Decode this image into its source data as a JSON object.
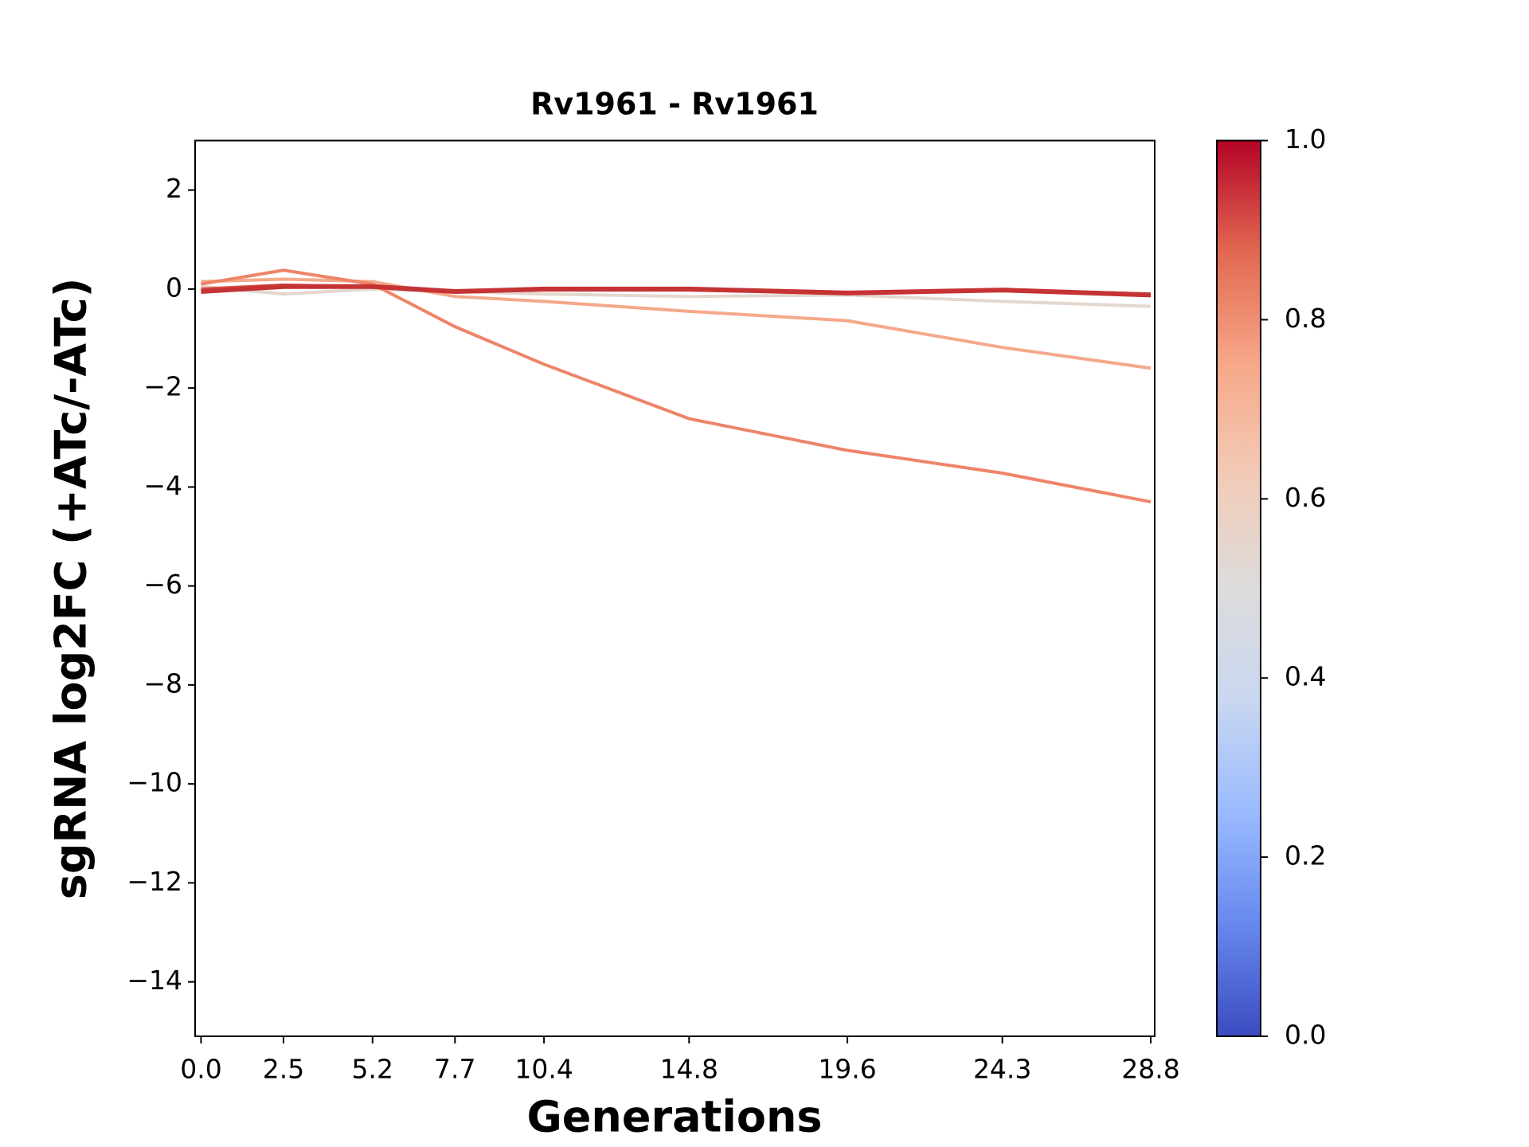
{
  "chart_data": {
    "type": "line",
    "title": "Rv1961 - Rv1961",
    "x_label": "Generations",
    "y_label": "sgRNA log2FC (+ATc/-ATc)",
    "x": [
      0.0,
      2.5,
      5.2,
      7.7,
      10.4,
      14.8,
      19.6,
      24.3,
      28.8
    ],
    "xlim": [
      -0.18,
      28.92
    ],
    "xticks": [
      {
        "value": 0,
        "label": "0.0"
      },
      2.5,
      5.2,
      7.7,
      10.4,
      14.8,
      19.6,
      24.3,
      28.8
    ],
    "ylim": [
      -15.1,
      3
    ],
    "yticks": [
      {
        "value": -14,
        "label": "−14"
      },
      {
        "value": -12,
        "label": "−12"
      },
      {
        "value": -10,
        "label": "−10"
      },
      {
        "value": -8,
        "label": "−8"
      },
      {
        "value": -6,
        "label": "−6"
      },
      {
        "value": -4,
        "label": "−4"
      },
      {
        "value": -2,
        "label": "−2"
      },
      0,
      2
    ],
    "grid": false,
    "series": [
      {
        "color": "#e4d7cf",
        "values": [
          0.05,
          -0.1,
          0.0,
          -0.05,
          -0.1,
          -0.15,
          -0.12,
          -0.25,
          -0.35
        ]
      },
      {
        "color": "#f4a98a",
        "values": [
          0.15,
          0.2,
          0.15,
          -0.15,
          -0.25,
          -0.45,
          -0.64,
          -1.18,
          -1.6
        ]
      },
      {
        "color": "#ee8468",
        "values": [
          0.1,
          0.38,
          0.1,
          -0.76,
          -1.52,
          -2.62,
          -3.26,
          -3.72,
          -4.3
        ]
      },
      {
        "color": "#d65244",
        "values": [
          0.0,
          0.08,
          0.05,
          -0.05,
          -0.02,
          -0.02,
          -0.08,
          -0.02,
          -0.1
        ]
      },
      {
        "color": "#c53334",
        "values": [
          -0.05,
          0.05,
          0.05,
          -0.05,
          0.0,
          0.0,
          -0.08,
          -0.02,
          -0.12
        ]
      }
    ],
    "colorbar": {
      "clim": [
        0,
        1
      ],
      "ticks": [
        {
          "value": 0,
          "label": "0.0"
        },
        0.2,
        0.4,
        0.6,
        0.8,
        {
          "value": 1,
          "label": "1.0"
        }
      ],
      "colors": [
        "#3b4cc0",
        "#6788ee",
        "#9abbff",
        "#c9d7f0",
        "#dddcdc",
        "#f2cbb7",
        "#f7a889",
        "#e26952",
        "#b40426"
      ]
    }
  }
}
